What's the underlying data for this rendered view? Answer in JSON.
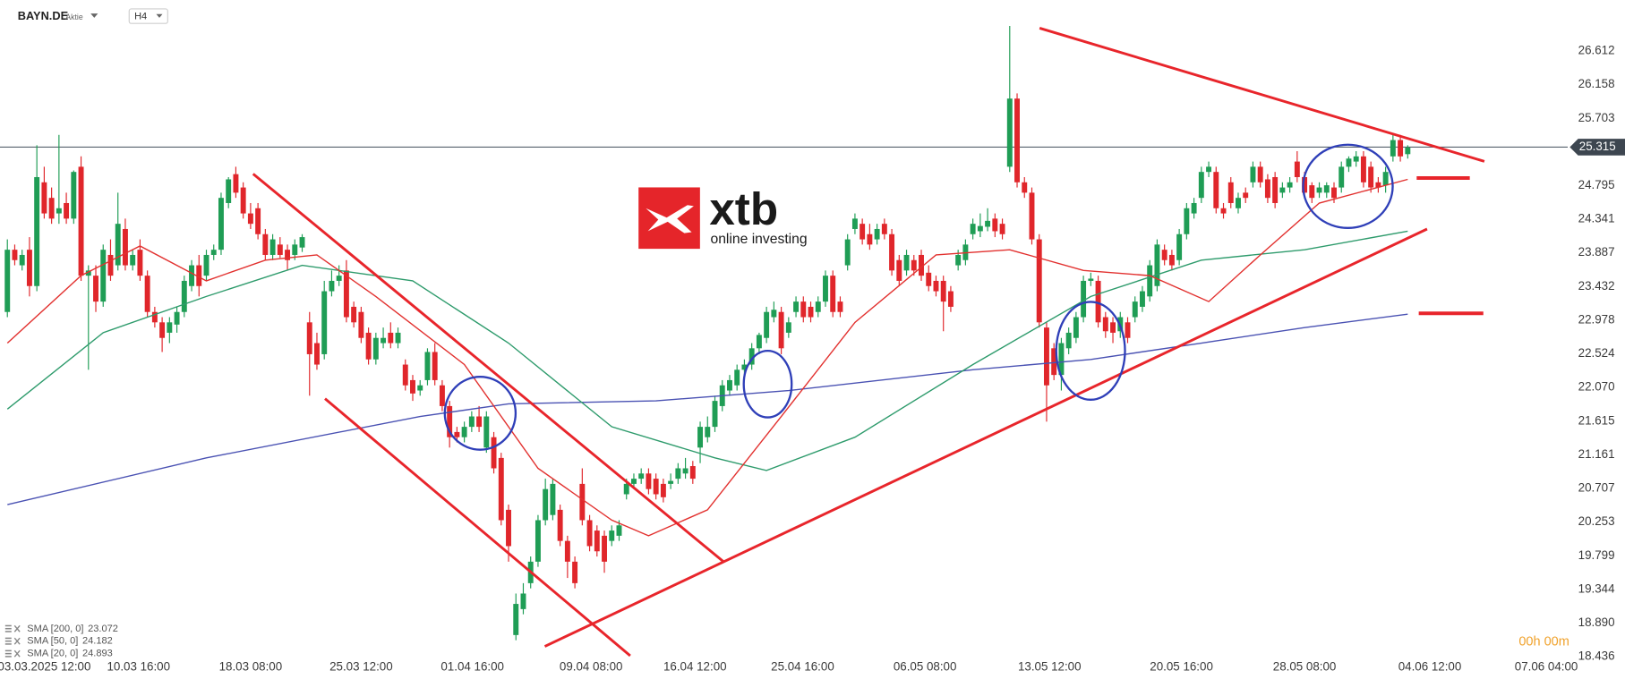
{
  "chart_data": {
    "type": "candlestick",
    "title": "BAYN.DE",
    "subtitle": "Aktie",
    "timeframe": "H4",
    "timer": "00h 00m",
    "logo": {
      "name": "xtb",
      "tagline": "online investing"
    },
    "up_color": "#1f9d55",
    "down_color": "#e0262b",
    "grid": false,
    "last_price": 25.315,
    "xlim": [
      -1,
      211
    ],
    "xticks": [
      {
        "value": 5,
        "label": "03.03.2025  12:00"
      },
      {
        "value": 17.8,
        "label": "10.03  16:00"
      },
      {
        "value": 33,
        "label": "18.03  08:00"
      },
      {
        "value": 48,
        "label": "25.03  12:00"
      },
      {
        "value": 63.1,
        "label": "01.04  16:00"
      },
      {
        "value": 79.2,
        "label": "09.04  08:00"
      },
      {
        "value": 93.3,
        "label": "16.04  12:00"
      },
      {
        "value": 107.9,
        "label": "25.04  16:00"
      },
      {
        "value": 124.5,
        "label": "06.05  08:00"
      },
      {
        "value": 141.4,
        "label": "13.05  12:00"
      },
      {
        "value": 159.3,
        "label": "20.05  16:00"
      },
      {
        "value": 176,
        "label": "28.05  08:00"
      },
      {
        "value": 193,
        "label": "04.06  12:00"
      },
      {
        "value": 208.8,
        "label": "07.06  04:00"
      }
    ],
    "ylim": [
      18.3,
      27.3
    ],
    "yticks": [
      18.436,
      {
        "value": 18.89,
        "label": "18.890"
      },
      19.344,
      19.799,
      20.253,
      20.707,
      21.161,
      21.615,
      {
        "value": 22.07,
        "label": "22.070"
      },
      22.524,
      22.978,
      23.432,
      23.887,
      24.341,
      24.795,
      25.703,
      26.158,
      26.612
    ],
    "open": [
      23.09,
      23.93,
      23.72,
      23.93,
      23.44,
      24.84,
      24.63,
      24.42,
      24.56,
      24.35,
      25.05,
      23.58,
      23.58,
      23.23,
      23.86,
      23.72,
      24.21,
      23.72,
      23.93,
      23.58,
      23.09,
      22.95,
      22.81,
      22.92,
      23.09,
      23.44,
      23.72,
      23.58,
      23.86,
      23.93,
      24.56,
      24.95,
      24.77,
      24.42,
      24.49,
      24.14,
      23.86,
      24.0,
      23.93,
      23.86,
      23.96,
      22.95,
      22.67,
      22.52,
      23.37,
      23.51,
      23.65,
      23.16,
      23.09,
      22.81,
      22.45,
      22.67,
      22.81,
      22.67,
      22.38,
      22.17,
      22.03,
      22.17,
      22.55,
      22.1,
      21.82,
      21.47,
      21.4,
      21.54,
      21.68,
      21.26,
      21.4,
      21.12,
      20.42,
      18.73,
      19.08,
      19.43,
      19.72,
      20.28,
      20.35,
      20.42,
      20.0,
      19.72,
      20.77,
      20.28,
      20.14,
      20.07,
      20.0,
      20.07,
      20.63,
      20.77,
      20.84,
      20.91,
      20.84,
      20.77,
      20.77,
      20.84,
      20.91,
      21.01,
      21.26,
      21.4,
      21.54,
      21.82,
      22.03,
      22.1,
      22.31,
      22.38,
      22.6,
      22.74,
      23.02,
      23.09,
      22.81,
      23.09,
      23.23,
      23.16,
      23.09,
      23.23,
      23.58,
      23.23,
      23.72,
      24.21,
      24.28,
      24.14,
      24.07,
      24.28,
      24.14,
      23.79,
      23.65,
      23.79,
      23.86,
      23.62,
      23.51,
      23.51,
      23.37,
      23.72,
      23.79,
      24.14,
      24.18,
      24.24,
      24.35,
      24.28,
      25.05,
      25.97,
      24.84,
      24.7,
      24.07,
      22.88,
      22.6,
      22.24,
      22.6,
      22.74,
      23.02,
      23.51,
      23.51,
      23.02,
      22.95,
      22.83,
      22.95,
      23.02,
      23.16,
      23.3,
      23.44,
      23.93,
      23.86,
      23.79,
      24.14,
      24.42,
      24.63,
      24.98,
      24.98,
      24.49,
      24.84,
      24.49,
      24.7,
      24.84,
      25.05,
      24.88,
      24.91,
      24.7,
      24.77,
      25.12,
      24.91,
      24.8,
      24.7,
      24.7,
      24.77,
      24.77,
      25.05,
      25.12,
      25.19,
      25.05,
      24.84,
      24.8,
      25.19,
      25.41,
      25.22
    ],
    "high": [
      24.07,
      24.0,
      23.93,
      24.1,
      25.34,
      25.05,
      24.77,
      25.48,
      24.7,
      25.0,
      25.19,
      23.72,
      23.72,
      24.0,
      24.07,
      24.7,
      24.35,
      23.93,
      24.07,
      23.65,
      23.16,
      23.02,
      23.02,
      23.16,
      23.58,
      23.79,
      23.86,
      23.93,
      24.0,
      24.7,
      24.91,
      25.05,
      24.84,
      24.56,
      24.56,
      24.21,
      24.14,
      24.1,
      24.0,
      24.07,
      24.14,
      23.09,
      22.81,
      23.51,
      23.65,
      23.72,
      23.79,
      23.23,
      23.16,
      22.88,
      22.81,
      22.88,
      22.95,
      22.88,
      22.45,
      22.24,
      22.17,
      22.6,
      22.67,
      22.17,
      21.89,
      21.54,
      21.61,
      21.75,
      21.82,
      21.75,
      21.47,
      21.19,
      20.49,
      19.29,
      19.43,
      19.79,
      20.35,
      20.84,
      20.84,
      20.49,
      20.07,
      19.79,
      20.98,
      20.35,
      20.21,
      20.14,
      20.21,
      20.28,
      20.84,
      20.91,
      20.98,
      20.98,
      20.91,
      20.84,
      20.91,
      21.05,
      21.12,
      21.08,
      21.61,
      21.68,
      21.96,
      22.17,
      22.24,
      22.38,
      22.45,
      22.67,
      22.81,
      23.16,
      23.23,
      23.16,
      23.02,
      23.3,
      23.3,
      23.23,
      23.3,
      23.65,
      23.65,
      23.3,
      24.14,
      24.42,
      24.35,
      24.28,
      24.28,
      24.35,
      24.21,
      23.86,
      23.93,
      23.86,
      23.93,
      23.72,
      23.58,
      23.58,
      23.44,
      23.93,
      24.07,
      24.35,
      24.42,
      24.49,
      24.42,
      24.35,
      26.95,
      26.04,
      24.91,
      24.77,
      24.14,
      22.95,
      22.67,
      22.74,
      22.88,
      23.09,
      23.58,
      23.62,
      23.58,
      23.09,
      23.02,
      23.09,
      23.02,
      23.3,
      23.44,
      23.79,
      24.07,
      24.0,
      23.93,
      24.21,
      24.56,
      24.63,
      25.05,
      25.12,
      25.05,
      24.56,
      24.91,
      24.7,
      24.77,
      25.12,
      25.12,
      24.95,
      24.98,
      24.84,
      24.91,
      25.26,
      24.98,
      24.84,
      24.84,
      24.84,
      24.84,
      25.12,
      25.19,
      25.26,
      25.26,
      25.12,
      24.91,
      25.05,
      25.48,
      25.48,
      25.34
    ],
    "low": [
      23.02,
      23.72,
      23.65,
      23.3,
      23.37,
      24.35,
      24.28,
      24.28,
      24.28,
      24.28,
      23.51,
      22.31,
      23.09,
      23.16,
      23.51,
      23.65,
      23.65,
      23.65,
      23.51,
      23.02,
      22.88,
      22.55,
      22.67,
      22.81,
      23.02,
      23.37,
      23.3,
      23.51,
      23.79,
      23.86,
      24.49,
      24.63,
      24.35,
      24.21,
      24.07,
      23.79,
      23.79,
      23.82,
      23.65,
      23.79,
      23.9,
      21.96,
      22.31,
      22.45,
      23.3,
      23.44,
      22.95,
      22.88,
      22.67,
      22.38,
      22.38,
      22.6,
      22.6,
      22.6,
      22.03,
      21.89,
      21.96,
      22.1,
      22.1,
      21.75,
      21.26,
      21.33,
      21.33,
      21.47,
      21.47,
      21.19,
      20.91,
      20.21,
      19.72,
      18.66,
      19.01,
      19.36,
      19.65,
      20.21,
      20.28,
      19.93,
      19.5,
      19.36,
      20.21,
      19.86,
      19.79,
      19.57,
      19.93,
      20.0,
      20.56,
      20.7,
      20.77,
      20.63,
      20.56,
      20.52,
      20.7,
      20.77,
      20.84,
      20.77,
      21.05,
      21.33,
      21.47,
      21.75,
      21.96,
      22.03,
      22.24,
      22.31,
      22.52,
      22.67,
      22.95,
      22.52,
      22.74,
      23.02,
      22.95,
      22.95,
      23.02,
      23.16,
      23.02,
      23.02,
      23.65,
      24.14,
      24.0,
      23.93,
      24.0,
      24.07,
      23.58,
      23.44,
      23.58,
      23.58,
      23.51,
      23.37,
      23.3,
      22.83,
      23.09,
      23.65,
      23.72,
      24.07,
      24.1,
      24.18,
      24.1,
      24.07,
      24.98,
      24.77,
      24.63,
      24.0,
      22.88,
      21.61,
      22.17,
      22.03,
      22.52,
      22.67,
      22.95,
      23.44,
      22.88,
      22.74,
      22.67,
      22.74,
      22.67,
      22.95,
      23.09,
      23.23,
      23.37,
      23.72,
      23.65,
      23.72,
      24.07,
      24.35,
      24.56,
      24.91,
      24.42,
      24.35,
      24.49,
      24.42,
      24.56,
      24.77,
      24.77,
      24.56,
      24.49,
      24.63,
      24.7,
      24.84,
      24.63,
      24.56,
      24.63,
      24.63,
      24.56,
      24.7,
      24.98,
      25.05,
      24.77,
      24.7,
      24.7,
      24.7,
      25.12,
      25.12,
      25.16
    ],
    "close": [
      23.93,
      23.79,
      23.86,
      23.44,
      24.91,
      24.42,
      24.35,
      24.49,
      24.35,
      24.98,
      23.58,
      23.65,
      23.23,
      23.93,
      23.58,
      24.28,
      23.72,
      23.86,
      23.58,
      23.09,
      22.95,
      22.74,
      22.95,
      23.09,
      23.51,
      23.72,
      23.44,
      23.86,
      23.93,
      24.63,
      24.88,
      24.7,
      24.42,
      24.28,
      24.14,
      23.86,
      24.07,
      23.86,
      23.79,
      24.0,
      24.1,
      22.52,
      22.38,
      23.37,
      23.51,
      23.58,
      23.02,
      22.95,
      22.74,
      22.45,
      22.74,
      22.74,
      22.67,
      22.81,
      22.1,
      21.99,
      22.1,
      22.55,
      22.17,
      21.82,
      21.4,
      21.4,
      21.54,
      21.68,
      21.54,
      21.68,
      20.98,
      20.28,
      19.93,
      19.15,
      19.29,
      19.72,
      20.28,
      20.7,
      20.77,
      20.0,
      19.72,
      19.43,
      20.28,
      19.93,
      19.86,
      19.72,
      20.14,
      20.21,
      20.77,
      20.84,
      20.91,
      20.7,
      20.63,
      20.59,
      20.81,
      20.98,
      20.98,
      20.84,
      21.54,
      21.54,
      21.89,
      22.1,
      22.17,
      22.31,
      22.38,
      22.6,
      22.78,
      23.09,
      23.12,
      22.6,
      22.95,
      23.23,
      23.02,
      23.02,
      23.23,
      23.58,
      23.09,
      23.09,
      24.07,
      24.35,
      24.07,
      24.0,
      24.21,
      24.14,
      23.65,
      23.51,
      23.86,
      23.65,
      23.58,
      23.44,
      23.37,
      23.23,
      23.16,
      23.86,
      24.0,
      24.28,
      24.25,
      24.32,
      24.18,
      24.14,
      25.97,
      24.84,
      24.7,
      24.07,
      22.95,
      22.1,
      22.24,
      22.67,
      22.81,
      23.02,
      23.51,
      23.54,
      22.95,
      22.83,
      22.81,
      23.02,
      22.74,
      23.23,
      23.37,
      23.72,
      24.0,
      23.79,
      23.72,
      24.14,
      24.49,
      24.56,
      24.98,
      25.05,
      24.49,
      24.42,
      24.56,
      24.63,
      24.63,
      25.05,
      24.84,
      24.63,
      24.56,
      24.77,
      24.84,
      24.91,
      24.7,
      24.63,
      24.77,
      24.8,
      24.63,
      25.05,
      25.16,
      25.19,
      24.84,
      24.77,
      24.77,
      24.98,
      25.41,
      25.19,
      25.31
    ],
    "series": [
      {
        "name": "SMA [200, 0]",
        "last": 23.072,
        "color": "#4a52b3",
        "x": [
          0,
          27,
          56,
          68,
          88,
          106,
          131,
          147,
          162,
          176,
          190
        ],
        "values": [
          20.49,
          21.12,
          21.68,
          21.85,
          21.89,
          22.03,
          22.31,
          22.45,
          22.67,
          22.88,
          23.06
        ]
      },
      {
        "name": "SMA [50, 0]",
        "last": 24.182,
        "color": "#2e9b6c",
        "x": [
          0,
          13,
          27,
          40,
          55,
          68,
          82,
          96,
          103,
          115,
          131,
          147,
          162,
          176,
          190
        ],
        "values": [
          21.78,
          22.81,
          23.3,
          23.72,
          23.51,
          22.67,
          21.54,
          21.12,
          20.95,
          21.4,
          22.38,
          23.3,
          23.79,
          23.93,
          24.18
        ]
      },
      {
        "name": "SMA [20, 0]",
        "last": 24.893,
        "color": "#e2312f",
        "x": [
          0,
          10,
          18,
          27,
          35,
          42,
          50,
          62,
          72,
          82,
          87,
          95,
          105,
          115,
          126,
          136,
          146,
          155,
          163,
          170,
          178,
          190
        ],
        "values": [
          22.67,
          23.58,
          23.98,
          23.51,
          23.79,
          23.86,
          23.3,
          22.38,
          20.98,
          20.28,
          20.07,
          20.42,
          21.68,
          22.95,
          23.86,
          23.93,
          23.65,
          23.58,
          23.23,
          23.86,
          24.56,
          24.88
        ]
      }
    ]
  }
}
